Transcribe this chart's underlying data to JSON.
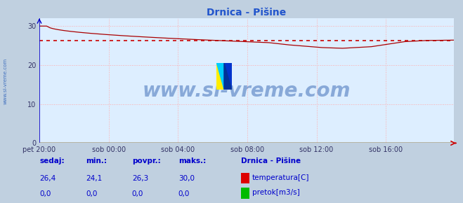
{
  "title": "Drnica - Pišine",
  "bg_color": "#ddeeff",
  "outer_bg_color": "#c0d0e0",
  "grid_color": "#ffaaaa",
  "ylim": [
    0,
    32
  ],
  "yticks": [
    0,
    10,
    20,
    30
  ],
  "xlabel_ticks": [
    "pet 20:00",
    "sob 00:00",
    "sob 04:00",
    "sob 08:00",
    "sob 12:00",
    "sob 16:00"
  ],
  "tick_positions": [
    0,
    48,
    96,
    144,
    192,
    240
  ],
  "avg_line_y": 26.3,
  "avg_line_color": "#cc0000",
  "temp_line_color": "#aa0000",
  "flow_line_color": "#00aa00",
  "yaxis_color": "#0000cc",
  "xaxis_color": "#cc0000",
  "watermark_text": "www.si-vreme.com",
  "watermark_color": "#2255aa",
  "watermark_fontsize": 20,
  "sidebar_text": "www.si-vreme.com",
  "sidebar_color": "#3366bb",
  "legend_title": "Drnica - Pišine",
  "legend_items": [
    "temperatura[C]",
    "pretok[m3/s]"
  ],
  "legend_colors": [
    "#dd0000",
    "#00bb00"
  ],
  "stat_labels": [
    "sedaj:",
    "min.:",
    "povpr.:",
    "maks.:"
  ],
  "stat_values_temp": [
    "26,4",
    "24,1",
    "26,3",
    "30,0"
  ],
  "stat_values_flow": [
    "0,0",
    "0,0",
    "0,0",
    "0,0"
  ],
  "n_points": 288,
  "title_color": "#2255cc",
  "title_fontsize": 10,
  "tick_color": "#333366",
  "tick_fontsize": 7,
  "stat_color": "#0000cc",
  "stat_fontsize": 7.5
}
